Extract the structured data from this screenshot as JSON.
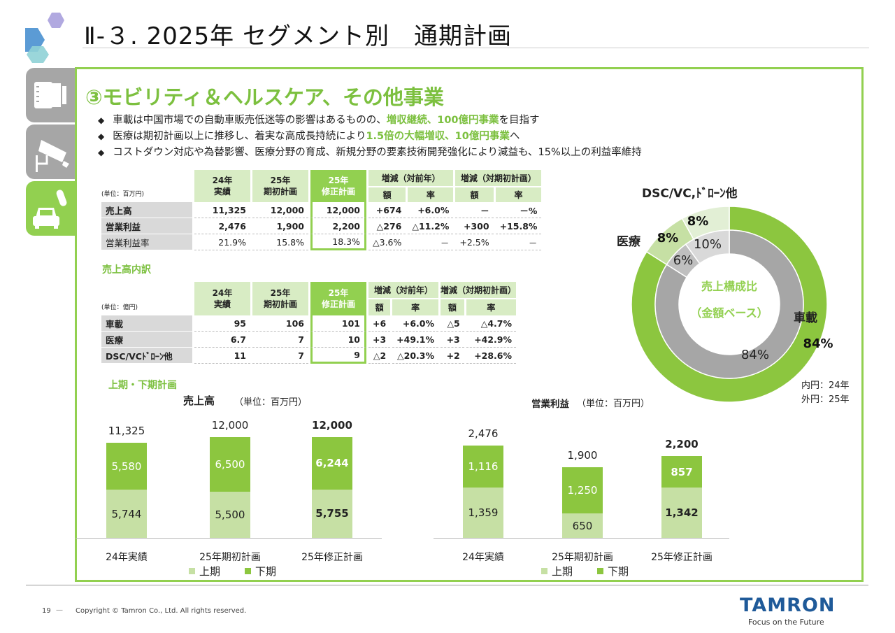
{
  "header": {
    "title": "Ⅱ-３. 2025年 セグメント別　通期計画"
  },
  "section": {
    "title": "③モビリティ＆ヘルスケア、その他事業"
  },
  "bullets": [
    [
      {
        "t": "車載は中国市場での自動車販売低迷等の影響はあるものの、"
      },
      {
        "t": "増収継続、100億円事業",
        "hl": true
      },
      {
        "t": "を目指す"
      }
    ],
    [
      {
        "t": "医療は期初計画以上に推移し、着実な高成長持続により"
      },
      {
        "t": "1.5倍の大幅増収、10億円事業",
        "hl": true
      },
      {
        "t": "へ"
      }
    ],
    [
      {
        "t": "コストダウン対応や為替影響、医療分野の育成、新規分野の要素技術開発強化により減益も、15%以上の利益率維持"
      }
    ]
  ],
  "sidebar": {
    "icons": [
      "lens-icon",
      "security-camera-icon",
      "car-medical-icon"
    ],
    "active": 2
  },
  "table1": {
    "unit": "(単位：百万円)",
    "headers": [
      "24年\n実績",
      "25年\n期初計画",
      "25年\n修正計画"
    ],
    "yoy": "増減（対前年）",
    "vsplan": "増減（対期初計画）",
    "sub": [
      "額",
      "率",
      "額",
      "率"
    ],
    "rows": [
      {
        "label": "売上高",
        "bold": true,
        "values": [
          "11,325",
          "12,000",
          "12,000",
          "+674",
          "+6.0%",
          "－",
          "－%"
        ]
      },
      {
        "label": "営業利益",
        "bold": true,
        "values": [
          "2,476",
          "1,900",
          "2,200",
          "△276",
          "△11.2%",
          "+300",
          "+15.8%"
        ]
      },
      {
        "label": "営業利益率",
        "bold": false,
        "values": [
          "21.9%",
          "15.8%",
          "18.3%",
          "△3.6%",
          "－",
          "+2.5%",
          "－"
        ]
      }
    ]
  },
  "breakdown_title": "売上高内訳",
  "table2": {
    "unit": "(単位：億円)",
    "headers": [
      "24年\n実績",
      "25年\n期初計画",
      "25年\n修正計画"
    ],
    "yoy": "増減（対前年）",
    "vsplan": "増減（対期初計画）",
    "sub": [
      "額",
      "率",
      "額",
      "率"
    ],
    "rows": [
      {
        "label": "車載",
        "bold": true,
        "values": [
          "95",
          "106",
          "101",
          "+6",
          "+6.0%",
          "△5",
          "△4.7%"
        ]
      },
      {
        "label": "医療",
        "bold": true,
        "values": [
          "6.7",
          "7",
          "10",
          "+3",
          "+49.1%",
          "+3",
          "+42.9%"
        ]
      },
      {
        "label": "DSC/VCﾄﾞﾛｰﾝ他",
        "bold": true,
        "values": [
          "11",
          "7",
          "9",
          "△2",
          "△20.3%",
          "+2",
          "+28.6%"
        ]
      }
    ]
  },
  "half_title": "上期・下期計画",
  "colors": {
    "accent": "#92d050",
    "dark_bar": "#8cc63f",
    "light_bar": "#c6e0a4",
    "inner_gray": "#a6a6a6"
  },
  "chart_data": [
    {
      "type": "bar",
      "stacked": true,
      "title": "売上高",
      "unit": "（単位：百万円）",
      "categories": [
        "24年実績",
        "25年期初計画",
        "25年修正計画"
      ],
      "series": [
        {
          "name": "上期",
          "values": [
            5744,
            5500,
            5755
          ]
        },
        {
          "name": "下期",
          "values": [
            5580,
            6500,
            6244
          ]
        }
      ],
      "totals": [
        "11,325",
        "12,000",
        "12,000"
      ],
      "labels_lower": [
        "5,744",
        "5,500",
        "5,755"
      ],
      "labels_upper": [
        "5,580",
        "6,500",
        "6,244"
      ],
      "legend": "bottom"
    },
    {
      "type": "bar",
      "stacked": true,
      "title": "営業利益",
      "unit": "（単位：百万円）",
      "categories": [
        "24年実績",
        "25年期初計画",
        "25年修正計画"
      ],
      "series": [
        {
          "name": "上期",
          "values": [
            1359,
            650,
            1342
          ]
        },
        {
          "name": "下期",
          "values": [
            1116,
            1250,
            857
          ]
        }
      ],
      "totals": [
        "2,476",
        "1,900",
        "2,200"
      ],
      "labels_lower": [
        "1,359",
        "650",
        "1,342"
      ],
      "labels_upper": [
        "1,116",
        "1,250",
        "857"
      ],
      "legend": "bottom"
    },
    {
      "type": "pie",
      "donut": true,
      "center_label": [
        "売上構成比",
        "（金額ベース）"
      ],
      "outer": {
        "name": "外円：25年",
        "categories": [
          "車載",
          "医療",
          "DSC/VC,ﾄﾞﾛｰﾝ他"
        ],
        "values": [
          84,
          8,
          8
        ]
      },
      "inner": {
        "name": "内円：24年",
        "values": [
          84,
          6,
          10
        ]
      }
    }
  ],
  "footer": {
    "page": "19",
    "copyright": "Copyright © Tamron Co., Ltd. All rights reserved.",
    "logo": "TAMRON",
    "tagline": "Focus on the Future"
  }
}
